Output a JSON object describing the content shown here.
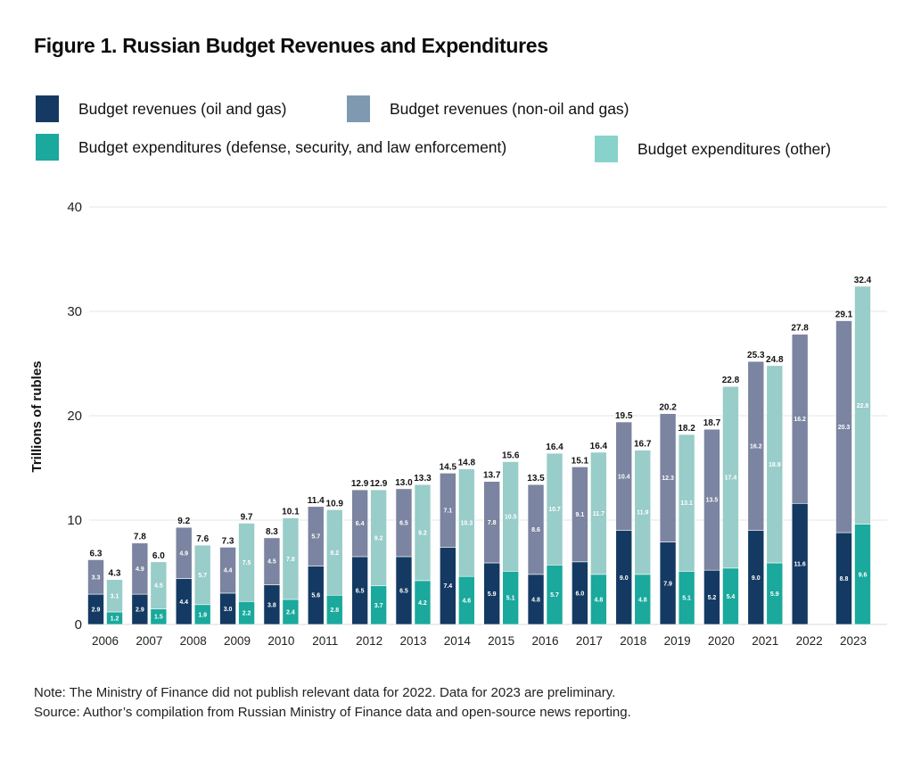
{
  "colors": {
    "rev_oil_gas": "#143a63",
    "rev_non_oil_gas": "#7b84a0",
    "exp_defense": "#1aa99c",
    "exp_other": "#98cdc9",
    "legend_rev_non_oil_gas": "#7f9ab0",
    "legend_exp_other": "#87d3cc",
    "grid": "#e6e6e6"
  },
  "chart_data": {
    "type": "bar",
    "stacked": true,
    "grouped": true,
    "title": "Figure 1. Russian Budget Revenues and Expenditures",
    "xlabel": "",
    "ylabel": "Trillions of rubles",
    "ylim": [
      0,
      40
    ],
    "yticks": [
      "0",
      "10",
      "20",
      "30",
      "40"
    ],
    "grid": true,
    "legend_position": "top",
    "legend": [
      "Budget revenues (oil and gas)",
      "Budget revenues (non-oil and gas)",
      "Budget expenditures (defense, security, and law enforcement)",
      "Budget expenditures (other)"
    ],
    "categories": [
      "2006",
      "2007",
      "2008",
      "2009",
      "2010",
      "2011",
      "2012",
      "2013",
      "2014",
      "2015",
      "2016",
      "2017",
      "2018",
      "2019",
      "2020",
      "2021",
      "2022",
      "2023"
    ],
    "groups": [
      {
        "name": "Budget revenues",
        "totals": [
          "6.3",
          "7.8",
          "9.2",
          "7.3",
          "8.3",
          "11.4",
          "12.9",
          "13.0",
          "14.5",
          "13.7",
          "13.5",
          "15.1",
          "19.5",
          "20.2",
          "18.7",
          "25.3",
          "27.8",
          "29.1"
        ],
        "series": [
          {
            "name": "Budget revenues (oil and gas)",
            "values": [
              2.9,
              2.9,
              4.4,
              3.0,
              3.8,
              5.6,
              6.5,
              6.5,
              7.4,
              5.9,
              4.8,
              6.0,
              9.0,
              7.9,
              5.2,
              9.0,
              11.6,
              8.8
            ]
          },
          {
            "name": "Budget revenues (non-oil and gas)",
            "values": [
              3.3,
              4.9,
              4.9,
              4.4,
              4.5,
              5.7,
              6.4,
              6.5,
              7.1,
              7.8,
              8.6,
              9.1,
              10.4,
              12.3,
              13.5,
              16.2,
              16.2,
              20.3
            ]
          }
        ]
      },
      {
        "name": "Budget expenditures",
        "totals": [
          "4.3",
          "6.0",
          "7.6",
          "9.7",
          "10.1",
          "10.9",
          "12.9",
          "13.3",
          "14.8",
          "15.6",
          "16.4",
          "16.4",
          "16.7",
          "18.2",
          "22.8",
          "24.8",
          null,
          "32.4"
        ],
        "series": [
          {
            "name": "Budget expenditures (defense, security, and law enforcement)",
            "values": [
              1.2,
              1.5,
              1.9,
              2.2,
              2.4,
              2.8,
              3.7,
              4.2,
              4.6,
              5.1,
              5.7,
              4.8,
              4.8,
              5.1,
              5.4,
              5.9,
              null,
              9.6
            ]
          },
          {
            "name": "Budget expenditures (other)",
            "values": [
              3.1,
              4.5,
              5.7,
              7.5,
              7.8,
              8.2,
              9.2,
              9.2,
              10.3,
              10.5,
              10.7,
              11.7,
              11.9,
              13.1,
              17.4,
              18.9,
              null,
              22.8
            ]
          }
        ]
      }
    ]
  },
  "legend": {
    "items": [
      {
        "label": "Budget revenues (oil and gas)"
      },
      {
        "label": "Budget revenues (non-oil and gas)"
      },
      {
        "label": "Budget expenditures (defense, security, and law enforcement)"
      },
      {
        "label": "Budget expenditures (other)"
      }
    ]
  },
  "notes": {
    "note": "Note: The Ministry of Finance did not publish relevant data for 2022. Data for 2023 are preliminary.",
    "source": "Source: Author’s compilation from Russian Ministry of Finance data and open-source news reporting."
  }
}
